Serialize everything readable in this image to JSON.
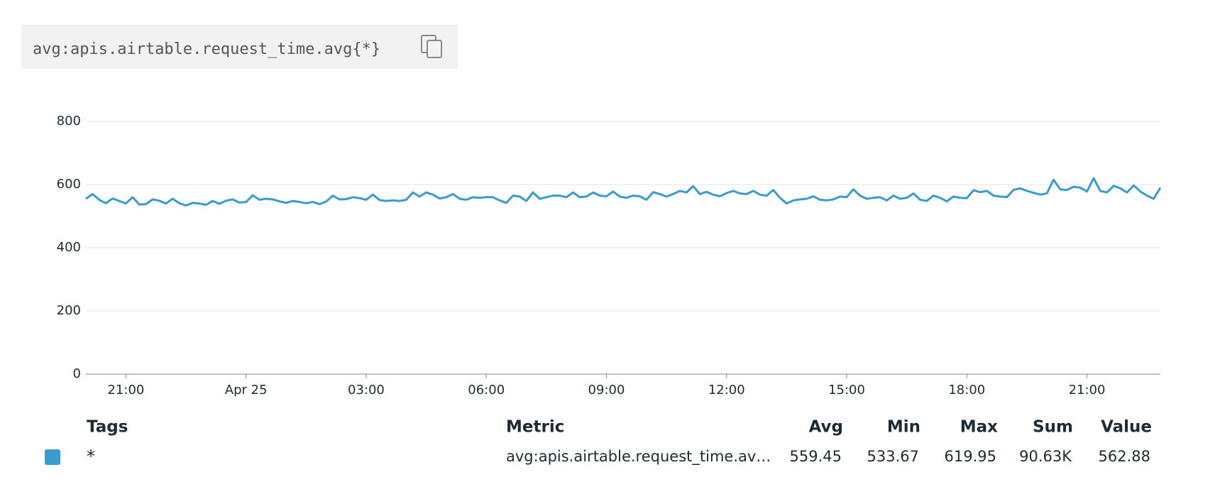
{
  "query": "avg:apis.airtable.request_time.avg{*}",
  "chart_data": {
    "type": "line",
    "categories": [
      null,
      null,
      null,
      null,
      null,
      null,
      "21:00",
      null,
      null,
      null,
      null,
      null,
      null,
      null,
      null,
      null,
      null,
      null,
      null,
      null,
      null,
      null,
      null,
      null,
      "Apr 25",
      null,
      null,
      null,
      null,
      null,
      null,
      null,
      null,
      null,
      null,
      null,
      null,
      null,
      null,
      null,
      null,
      null,
      "03:00",
      null,
      null,
      null,
      null,
      null,
      null,
      null,
      null,
      null,
      null,
      null,
      null,
      null,
      null,
      null,
      null,
      null,
      "06:00",
      null,
      null,
      null,
      null,
      null,
      null,
      null,
      null,
      null,
      null,
      null,
      null,
      null,
      null,
      null,
      null,
      null,
      "09:00",
      null,
      null,
      null,
      null,
      null,
      null,
      null,
      null,
      null,
      null,
      null,
      null,
      null,
      null,
      null,
      null,
      null,
      "12:00",
      null,
      null,
      null,
      null,
      null,
      null,
      null,
      null,
      null,
      null,
      null,
      null,
      null,
      null,
      null,
      null,
      null,
      "15:00",
      null,
      null,
      null,
      null,
      null,
      null,
      null,
      null,
      null,
      null,
      null,
      null,
      null,
      null,
      null,
      null,
      null,
      "18:00",
      null,
      null,
      null,
      null,
      null,
      null,
      null,
      null,
      null,
      null,
      null,
      null,
      null,
      null,
      null,
      null,
      null,
      "21:00",
      null,
      null,
      null,
      null,
      null,
      null,
      null,
      null,
      null,
      null,
      null
    ],
    "series": [
      {
        "name": "*",
        "color": "#3a9bcf",
        "values": [
          555,
          570,
          552,
          541,
          556,
          548,
          540,
          560,
          537,
          538,
          553,
          549,
          540,
          555,
          541,
          534,
          542,
          540,
          536,
          548,
          539,
          549,
          553,
          543,
          545,
          566,
          552,
          555,
          553,
          547,
          542,
          548,
          545,
          541,
          545,
          538,
          546,
          565,
          553,
          554,
          560,
          557,
          552,
          568,
          551,
          548,
          550,
          548,
          552,
          575,
          562,
          575,
          568,
          556,
          560,
          570,
          555,
          552,
          560,
          558,
          560,
          560,
          550,
          542,
          565,
          562,
          548,
          575,
          555,
          560,
          565,
          565,
          560,
          575,
          560,
          562,
          575,
          565,
          563,
          578,
          562,
          558,
          565,
          563,
          552,
          576,
          570,
          562,
          570,
          580,
          575,
          595,
          570,
          577,
          568,
          563,
          573,
          580,
          572,
          570,
          580,
          568,
          565,
          583,
          558,
          540,
          550,
          553,
          555,
          563,
          552,
          550,
          553,
          562,
          560,
          585,
          565,
          555,
          558,
          560,
          550,
          565,
          555,
          558,
          572,
          552,
          548,
          565,
          558,
          547,
          562,
          558,
          557,
          582,
          576,
          580,
          565,
          562,
          560,
          583,
          588,
          580,
          574,
          568,
          572,
          615,
          585,
          583,
          593,
          590,
          578,
          620,
          580,
          575,
          596,
          588,
          575,
          597,
          578,
          565,
          555,
          590
        ]
      }
    ],
    "ylim": [
      0,
      800
    ],
    "yticks": [
      0,
      200,
      400,
      600,
      800
    ],
    "grid": true
  },
  "legend": {
    "headers": [
      "Tags",
      "Metric",
      "Avg",
      "Min",
      "Max",
      "Sum",
      "Value"
    ],
    "rows": [
      [
        "*",
        "avg:apis.airtable.request_time.av…",
        "559.45",
        "533.67",
        "619.95",
        "90.63K",
        "562.88"
      ]
    ]
  }
}
